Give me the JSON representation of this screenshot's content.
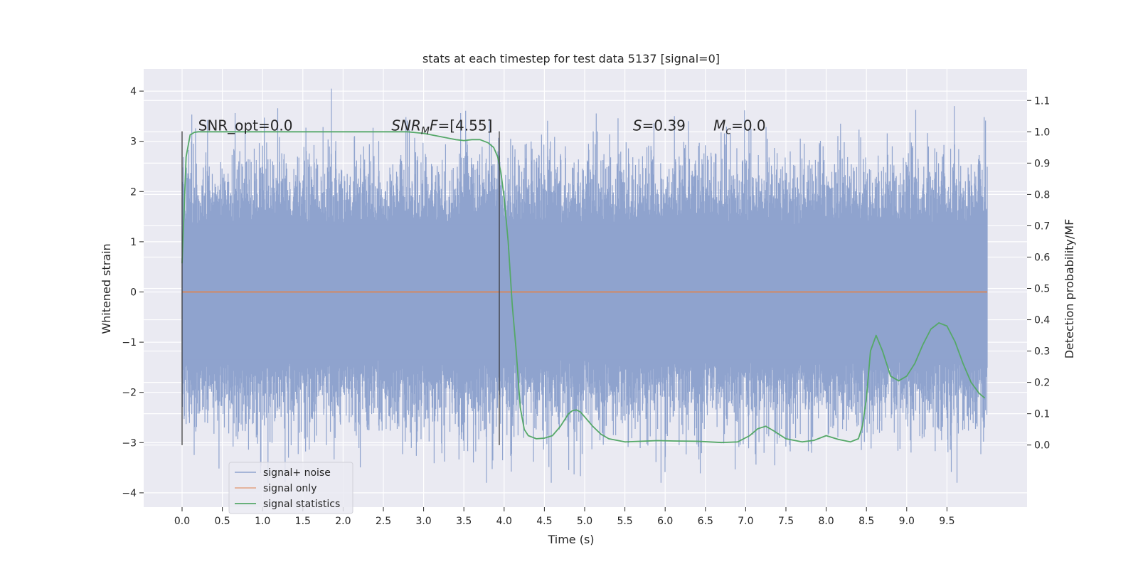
{
  "chart_data": {
    "type": "line",
    "title": "stats at each timestep for test data 5137 [signal=0]",
    "xlabel": "Time (s)",
    "ylabel_left": "Whitened strain",
    "ylabel_right": "Detection probability/MF",
    "xlim": [
      -0.5,
      10.5
    ],
    "ylim_left": [
      -4.2,
      4.4
    ],
    "ylim_right": [
      -0.195,
      1.195
    ],
    "xticks": [
      "0.0",
      "0.5",
      "1.0",
      "1.5",
      "2.0",
      "2.5",
      "3.0",
      "3.5",
      "4.0",
      "4.5",
      "5.0",
      "5.5",
      "6.0",
      "6.5",
      "7.0",
      "7.5",
      "8.0",
      "8.5",
      "9.0",
      "9.5"
    ],
    "yticks_left": [
      "4",
      "3",
      "2",
      "1",
      "0",
      "−1",
      "−2",
      "−3",
      "−4"
    ],
    "yticks_right": [
      "1.1",
      "1.0",
      "0.9",
      "0.8",
      "0.7",
      "0.6",
      "0.5",
      "0.4",
      "0.3",
      "0.2",
      "0.1",
      "0.0"
    ],
    "grid": true,
    "legend_position": "lower-left",
    "vlines": [
      0.0,
      3.94
    ],
    "vline_range": [
      -3.05,
      3.2
    ],
    "annotations": [
      {
        "name": "snr-opt",
        "base": "SNR_opt=0.0",
        "x": 0.2,
        "y": 3.2
      },
      {
        "name": "snr-mf",
        "base": "SNR",
        "sub": "M",
        "rest": "F=[4.55]",
        "x": 2.6,
        "y": 3.2
      },
      {
        "name": "s-value",
        "base": "S",
        "rest": "=0.39",
        "x": 5.6,
        "y": 3.2
      },
      {
        "name": "mc-value",
        "base": "M",
        "sub": "c",
        "rest": "=0.0",
        "x": 6.6,
        "y": 3.2
      }
    ],
    "series": [
      {
        "name": "signal+ noise",
        "color": "#8fa3ce",
        "axis": "left",
        "kind": "noise",
        "x_range": [
          0,
          10.0
        ],
        "core_amplitude": 1.35,
        "max_amplitude": 4.05,
        "min_amplitude": -3.8
      },
      {
        "name": "signal only",
        "color": "#dd8452",
        "axis": "left",
        "x": [
          0,
          10.0
        ],
        "y": [
          0,
          0
        ]
      },
      {
        "name": "signal statistics",
        "color": "#55a868",
        "axis": "right",
        "x": [
          0.0,
          0.05,
          0.1,
          0.15,
          0.2,
          0.3,
          0.5,
          1.0,
          1.5,
          2.0,
          2.5,
          2.8,
          3.0,
          3.2,
          3.4,
          3.5,
          3.6,
          3.7,
          3.8,
          3.87,
          3.92,
          3.96,
          4.0,
          4.05,
          4.1,
          4.15,
          4.2,
          4.25,
          4.3,
          4.35,
          4.4,
          4.5,
          4.6,
          4.7,
          4.8,
          4.85,
          4.9,
          4.95,
          5.0,
          5.1,
          5.2,
          5.3,
          5.5,
          5.7,
          5.9,
          6.1,
          6.4,
          6.7,
          6.9,
          7.05,
          7.15,
          7.25,
          7.35,
          7.5,
          7.7,
          7.85,
          8.0,
          8.15,
          8.3,
          8.4,
          8.45,
          8.5,
          8.55,
          8.62,
          8.7,
          8.8,
          8.9,
          9.0,
          9.1,
          9.2,
          9.3,
          9.4,
          9.5,
          9.6,
          9.7,
          9.8,
          9.9,
          9.97
        ],
        "y": [
          0.58,
          0.92,
          0.99,
          0.998,
          1.0,
          1.0,
          1.0,
          1.0,
          1.0,
          1.0,
          1.0,
          1.0,
          0.995,
          0.985,
          0.975,
          0.972,
          0.975,
          0.975,
          0.965,
          0.95,
          0.92,
          0.87,
          0.79,
          0.65,
          0.45,
          0.3,
          0.12,
          0.05,
          0.03,
          0.025,
          0.02,
          0.022,
          0.03,
          0.06,
          0.1,
          0.11,
          0.112,
          0.105,
          0.09,
          0.06,
          0.035,
          0.02,
          0.01,
          0.012,
          0.014,
          0.013,
          0.012,
          0.008,
          0.01,
          0.03,
          0.052,
          0.06,
          0.045,
          0.02,
          0.01,
          0.015,
          0.03,
          0.018,
          0.01,
          0.02,
          0.06,
          0.15,
          0.3,
          0.35,
          0.3,
          0.22,
          0.205,
          0.22,
          0.26,
          0.32,
          0.37,
          0.39,
          0.38,
          0.33,
          0.26,
          0.2,
          0.165,
          0.15
        ]
      }
    ]
  }
}
